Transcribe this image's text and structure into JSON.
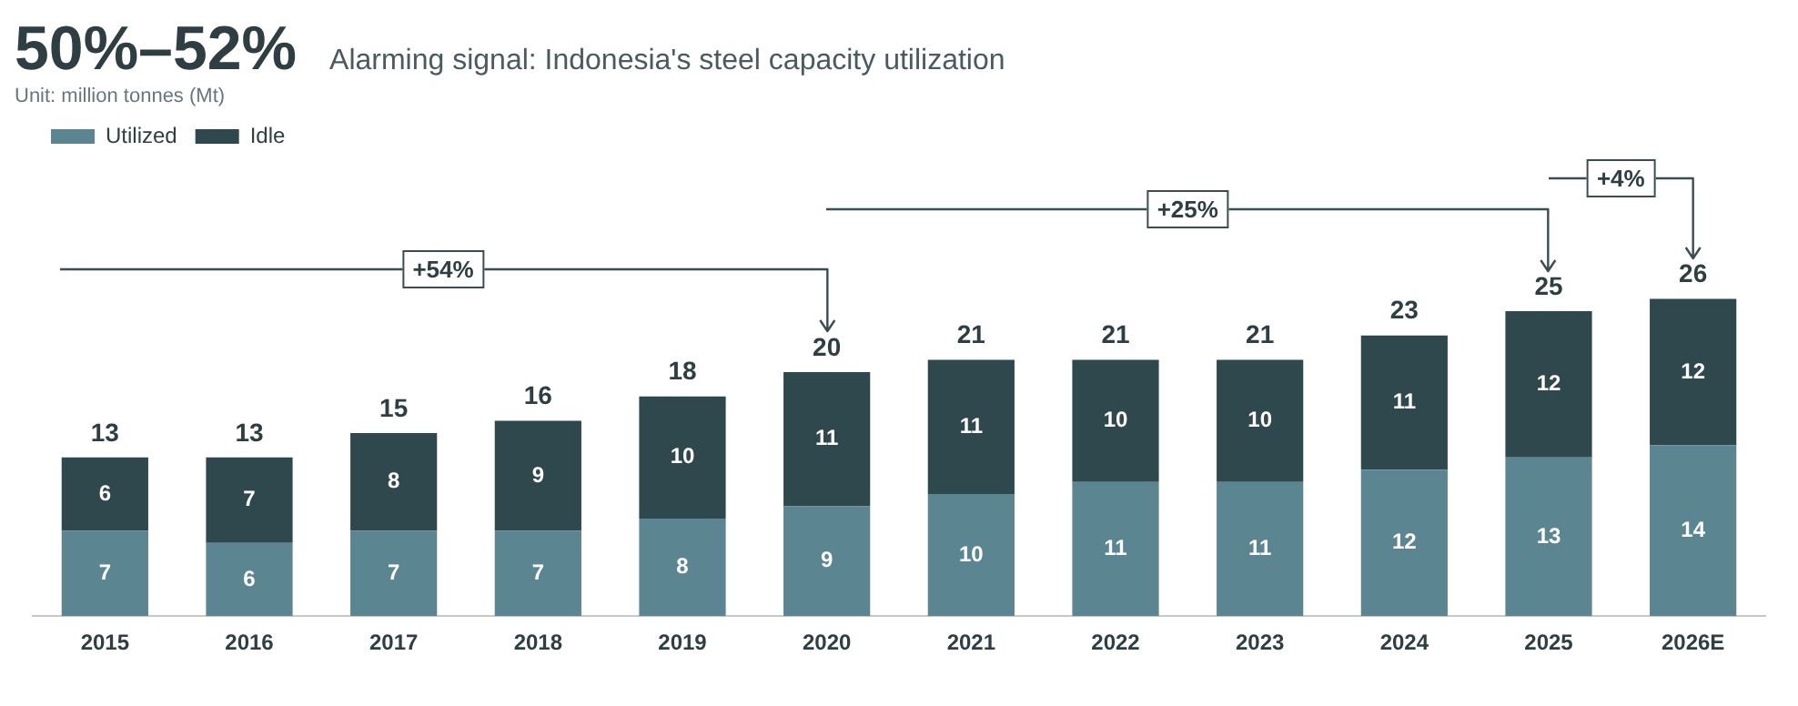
{
  "chart_data": {
    "type": "bar",
    "title": "50%–52%",
    "subtitle": "Alarming signal: Indonesia's steel capacity utilization",
    "categories": [
      "2015",
      "2016",
      "2017",
      "2018",
      "2019",
      "2020",
      "2021",
      "2022",
      "2023",
      "2024",
      "2025",
      "2026E"
    ],
    "stacked": true,
    "data_labels": true,
    "legend": "top left",
    "grid": false,
    "tick_labels": "x",
    "series": [
      {
        "name": "Utilized",
        "color": "#5a8591",
        "values": [
          7,
          6,
          7,
          7,
          8,
          9,
          10,
          11,
          11,
          12,
          13,
          14
        ]
      },
      {
        "name": "Idle",
        "color": "#2f484e",
        "values": [
          6,
          7,
          8,
          9,
          10,
          11,
          11,
          10,
          10,
          11,
          12,
          12
        ]
      }
    ],
    "totals": [
      "13",
      "13",
      "15",
      "16",
      "18",
      "20",
      "21",
      "21",
      "21",
      "23",
      "25",
      "26"
    ],
    "annotations": [
      "Unit: million tonnes (Mt)",
      "+54%",
      "+25%",
      "+4%"
    ]
  }
}
